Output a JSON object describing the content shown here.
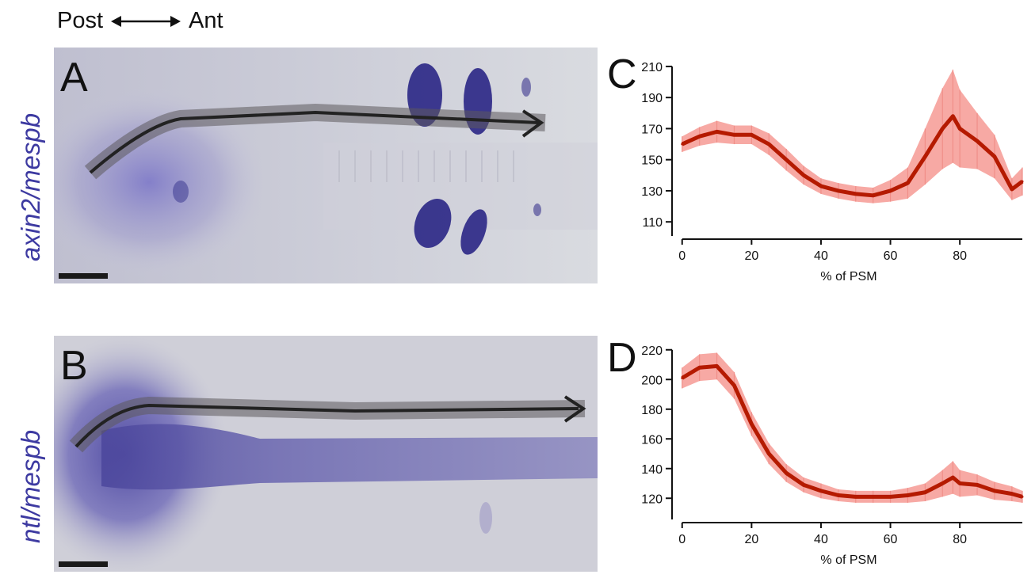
{
  "orientation": {
    "left": "Post",
    "right": "Ant"
  },
  "row_labels": {
    "top": "axin2/mespb",
    "bottom": "ntl/mespb"
  },
  "panels": {
    "a": "A",
    "b": "B"
  },
  "chart_data": [
    {
      "panel": "C",
      "type": "line",
      "xlabel": "% of PSM",
      "ylabel": "",
      "xlim": [
        -2,
        98
      ],
      "ylim": [
        105,
        212
      ],
      "xticks": [
        0,
        20,
        40,
        60,
        80
      ],
      "yticks": [
        110,
        130,
        150,
        170,
        190,
        210
      ],
      "color": "#b51a00",
      "band_color": "#f7a9a4",
      "x": [
        0,
        5,
        10,
        15,
        20,
        25,
        30,
        35,
        40,
        45,
        50,
        55,
        60,
        65,
        70,
        75,
        78,
        80,
        85,
        90,
        95,
        98
      ],
      "y": [
        160,
        165,
        168,
        166,
        166,
        160,
        150,
        140,
        133,
        130,
        128,
        127,
        130,
        135,
        152,
        170,
        178,
        170,
        162,
        152,
        131,
        136
      ],
      "err": [
        5,
        6,
        7,
        6,
        6,
        7,
        7,
        6,
        5,
        5,
        5,
        5,
        7,
        10,
        18,
        26,
        30,
        25,
        18,
        14,
        7,
        9
      ]
    },
    {
      "panel": "D",
      "type": "line",
      "xlabel": "% of PSM",
      "ylabel": "",
      "xlim": [
        -2,
        98
      ],
      "ylim": [
        110,
        222
      ],
      "xticks": [
        0,
        20,
        40,
        60,
        80
      ],
      "yticks": [
        120,
        140,
        160,
        180,
        200,
        220
      ],
      "color": "#b51a00",
      "band_color": "#f7a9a4",
      "x": [
        0,
        5,
        10,
        15,
        20,
        25,
        30,
        35,
        40,
        45,
        50,
        55,
        60,
        65,
        70,
        75,
        78,
        80,
        85,
        90,
        95,
        98
      ],
      "y": [
        201,
        208,
        209,
        196,
        170,
        150,
        137,
        129,
        125,
        122,
        121,
        121,
        121,
        122,
        124,
        130,
        134,
        130,
        129,
        125,
        123,
        121
      ],
      "err": [
        7,
        9,
        9,
        9,
        8,
        7,
        6,
        5,
        5,
        4,
        4,
        4,
        4,
        5,
        6,
        9,
        11,
        9,
        7,
        6,
        5,
        4
      ]
    }
  ]
}
